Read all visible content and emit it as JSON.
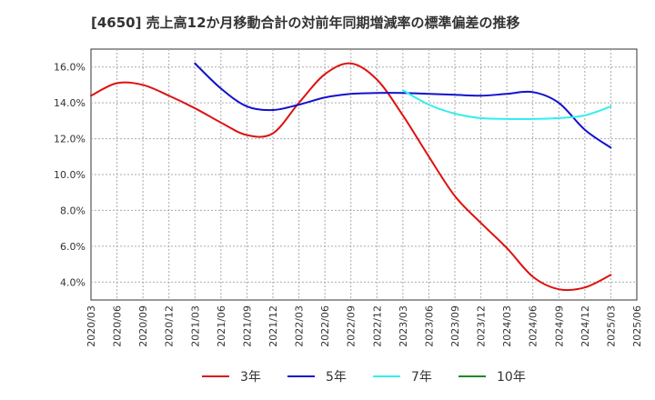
{
  "chart_data": {
    "type": "line",
    "title": "[4650]  売上高12か月移動合計の対前年同期増減率の標準偏差の推移",
    "x": [
      "2020/03",
      "2020/06",
      "2020/09",
      "2020/12",
      "2021/03",
      "2021/06",
      "2021/09",
      "2021/12",
      "2022/03",
      "2022/06",
      "2022/09",
      "2022/12",
      "2023/03",
      "2023/06",
      "2023/09",
      "2023/12",
      "2024/03",
      "2024/06",
      "2024/09",
      "2024/12",
      "2025/03",
      "2025/06"
    ],
    "ylim": [
      3.0,
      17.0
    ],
    "yticks": [
      4.0,
      6.0,
      8.0,
      10.0,
      12.0,
      14.0,
      16.0
    ],
    "ytick_labels": [
      "4.0%",
      "6.0%",
      "8.0%",
      "10.0%",
      "12.0%",
      "14.0%",
      "16.0%"
    ],
    "grid": true,
    "legend_position": "bottom",
    "series": [
      {
        "name": "3年",
        "color": "#dd1111",
        "values": [
          14.4,
          15.1,
          15.0,
          14.4,
          13.7,
          12.9,
          12.2,
          12.3,
          14.0,
          15.6,
          16.2,
          15.3,
          13.3,
          11.0,
          8.8,
          7.3,
          5.9,
          4.3,
          3.6,
          3.7,
          4.4,
          null
        ]
      },
      {
        "name": "5年",
        "color": "#1111cc",
        "values": [
          null,
          null,
          null,
          null,
          16.2,
          14.8,
          13.8,
          13.6,
          13.9,
          14.3,
          14.5,
          14.55,
          14.55,
          14.5,
          14.45,
          14.4,
          14.5,
          14.6,
          14.0,
          12.5,
          11.5,
          null
        ]
      },
      {
        "name": "7年",
        "color": "#33eeee",
        "values": [
          null,
          null,
          null,
          null,
          null,
          null,
          null,
          null,
          null,
          null,
          null,
          null,
          14.7,
          13.9,
          13.4,
          13.15,
          13.1,
          13.1,
          13.15,
          13.3,
          13.8,
          null
        ]
      },
      {
        "name": "10年",
        "color": "#228822",
        "values": [
          null,
          null,
          null,
          null,
          null,
          null,
          null,
          null,
          null,
          null,
          null,
          null,
          null,
          null,
          null,
          null,
          null,
          null,
          null,
          null,
          null,
          null
        ]
      }
    ]
  }
}
